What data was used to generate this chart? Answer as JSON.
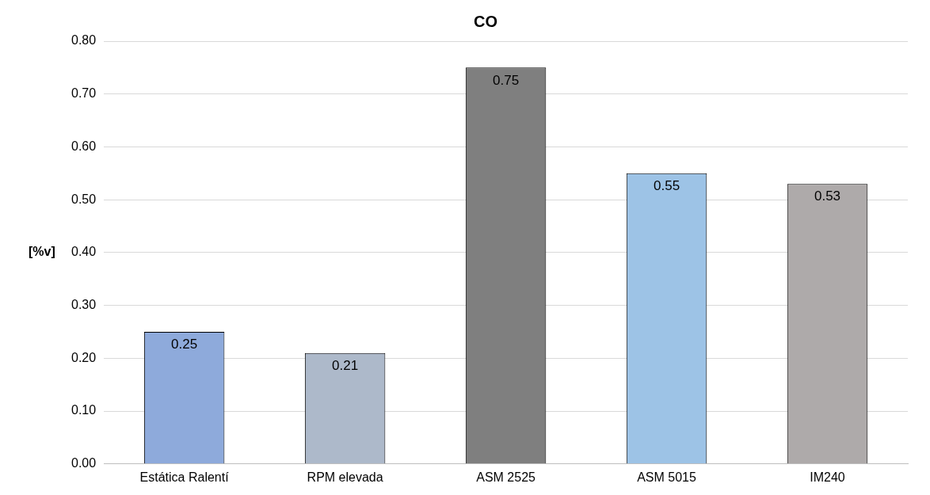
{
  "chart_data": {
    "type": "bar",
    "title": "CO",
    "ylabel": "[%v]",
    "categories": [
      "Estática Ralentí",
      "RPM elevada",
      "ASM 2525",
      "ASM 5015",
      "IM240"
    ],
    "values": [
      0.25,
      0.21,
      0.75,
      0.55,
      0.53
    ],
    "colors": [
      "#8eaadb",
      "#adb9ca",
      "#7f7f7f",
      "#9dc3e6",
      "#aeaaaa"
    ],
    "ylim": [
      0,
      0.8
    ],
    "yticks": [
      {
        "value": 0,
        "label": "0.00"
      },
      {
        "value": 0.1,
        "label": "0.10"
      },
      {
        "value": 0.2,
        "label": "0.20"
      },
      {
        "value": 0.3,
        "label": "0.30"
      },
      {
        "value": 0.4,
        "label": "0.40"
      },
      {
        "value": 0.5,
        "label": "0.50"
      },
      {
        "value": 0.6,
        "label": "0.60"
      },
      {
        "value": 0.7,
        "label": "0.70"
      },
      {
        "value": 0.8,
        "label": "0.80"
      }
    ],
    "grid": "y",
    "data_labels": true,
    "legend": false
  }
}
